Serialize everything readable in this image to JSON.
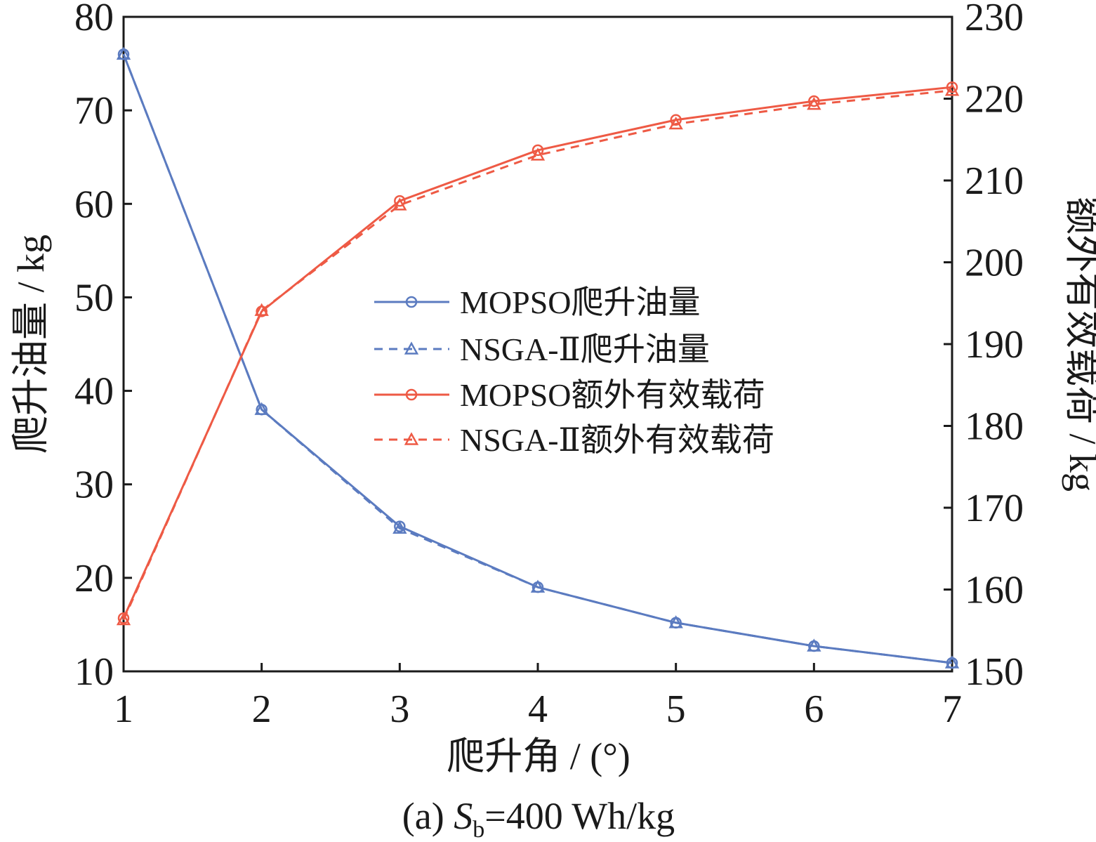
{
  "chart_data": {
    "type": "line",
    "x": [
      1,
      2,
      3,
      4,
      5,
      6,
      7
    ],
    "xlabel": "爬升角 / (°)",
    "xlim": [
      1,
      7
    ],
    "xticks": [
      "1",
      "2",
      "3",
      "4",
      "5",
      "6",
      "7"
    ],
    "ylabel_left": "爬升油量 / kg",
    "ylim_left": [
      10,
      80
    ],
    "yticks_left": [
      "10",
      "20",
      "30",
      "40",
      "50",
      "60",
      "70",
      "80"
    ],
    "ylabel_right": "额外有效载荷 / kg",
    "ylim_right": [
      150,
      230
    ],
    "yticks_right": [
      "150",
      "160",
      "170",
      "180",
      "190",
      "200",
      "210",
      "220",
      "230"
    ],
    "caption": {
      "prefix": "(a) ",
      "var": "S",
      "sub": "b",
      "rest": "=400 Wh/kg"
    },
    "legend_position": "center",
    "series": [
      {
        "name": "MOPSO爬升油量",
        "axis": "left",
        "color": "#5b7bc0",
        "dash": "solid",
        "marker": "circle",
        "values": [
          76.0,
          38.0,
          25.5,
          19.0,
          15.2,
          12.7,
          10.9
        ]
      },
      {
        "name": "NSGA-Ⅱ爬升油量",
        "axis": "left",
        "color": "#5b7bc0",
        "dash": "dashed",
        "marker": "triangle",
        "values": [
          76.0,
          38.0,
          25.3,
          19.0,
          15.2,
          12.7,
          10.9
        ]
      },
      {
        "name": "MOPSO额外有效载荷",
        "axis": "right",
        "color": "#ee5a45",
        "dash": "solid",
        "marker": "circle",
        "values": [
          156.5,
          194.0,
          207.5,
          213.7,
          217.4,
          219.7,
          221.4
        ]
      },
      {
        "name": "NSGA-Ⅱ额外有效载荷",
        "axis": "right",
        "color": "#ee5a45",
        "dash": "dashed",
        "marker": "triangle",
        "values": [
          156.3,
          194.1,
          207.0,
          213.1,
          216.9,
          219.3,
          221.0
        ]
      }
    ]
  }
}
